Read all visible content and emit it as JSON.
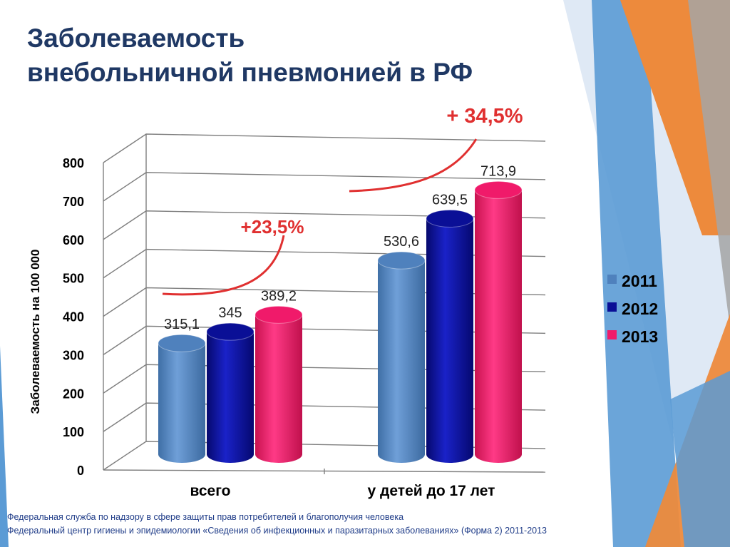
{
  "slide": {
    "title_line1": "Заболеваемость",
    "title_line2": "внебольничной пневмонией в РФ",
    "source_line1": "Федеральная служба по надзору в сфере защиты прав потребителей и благополучия человека",
    "source_line2": "Федеральный центр гигиены и эпидемиологии «Сведения об инфекционных и паразитарных заболеваниях» (Форма 2) 2011-2013"
  },
  "chart_data": {
    "type": "bar",
    "ylabel": "Заболеваемость на 100 000",
    "ylim": [
      0,
      800
    ],
    "yticks": [
      "0",
      "100",
      "200",
      "300",
      "400",
      "500",
      "600",
      "700",
      "800"
    ],
    "categories": [
      "всего",
      "у детей до 17 лет"
    ],
    "series": [
      {
        "name": "2011",
        "values": [
          315.1,
          530.6
        ],
        "labels": [
          "315,1",
          "530,6"
        ],
        "color": "#4f81bd"
      },
      {
        "name": "2012",
        "values": [
          345,
          639.5
        ],
        "labels": [
          "345",
          "639,5"
        ],
        "color": "#0a0f96"
      },
      {
        "name": "2013",
        "values": [
          389.2,
          713.9
        ],
        "labels": [
          "389,2",
          "713,9"
        ],
        "color": "#f01a6a"
      }
    ],
    "annotations": [
      "+23,5%",
      "+ 34,5%"
    ],
    "annotation_color": "#e03030",
    "grid": true,
    "legend_position": "right"
  }
}
